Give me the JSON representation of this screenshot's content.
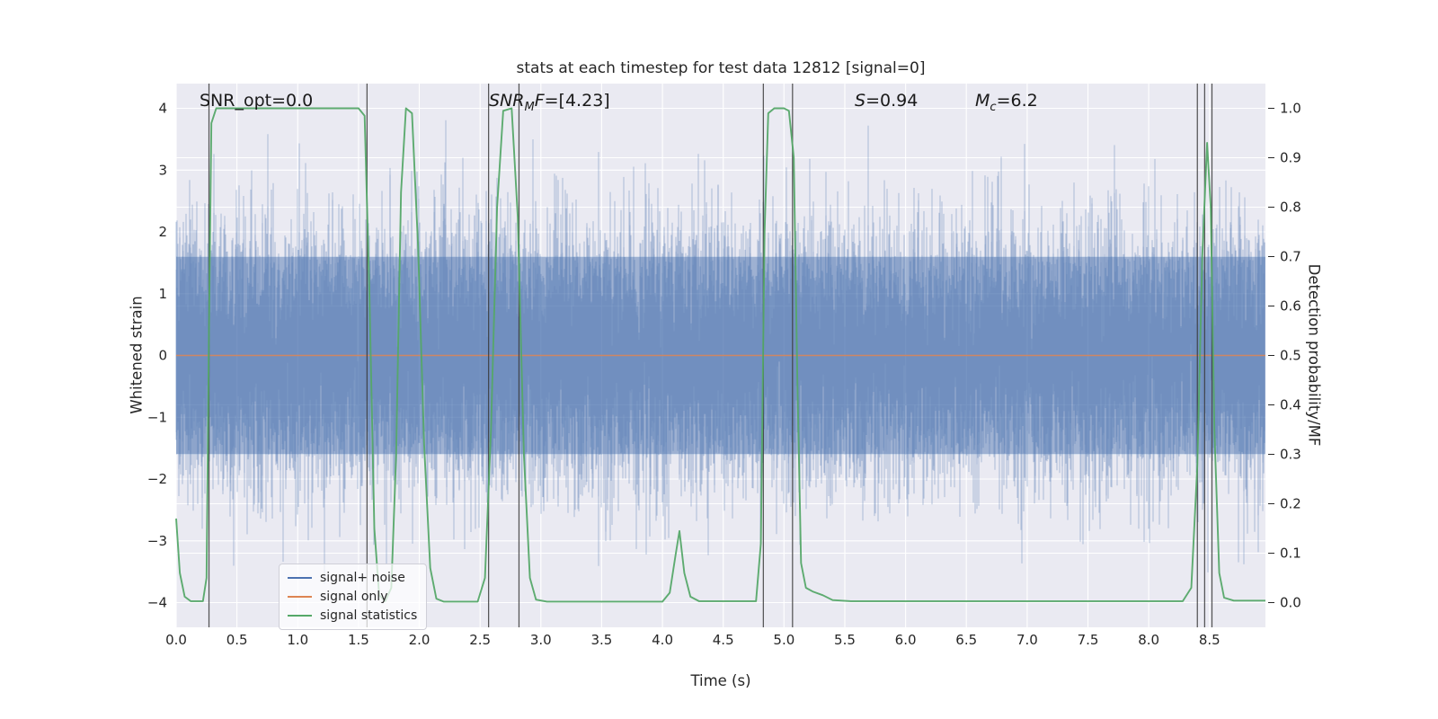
{
  "figure": {
    "background": "#ffffff",
    "axes_background": "#eaeaf2",
    "grid_color": "#ffffff",
    "text_color": "#262626",
    "trigger_line_color": "#3a3a3a"
  },
  "chart_data": {
    "type": "line",
    "title": "stats at each timestep for test data 12812 [signal=0]",
    "xlabel": "Time (s)",
    "ylabel_left": "Whitened strain",
    "ylabel_right": "Detection probability/MF",
    "xlim": [
      0,
      8.96
    ],
    "ylim_left": [
      -4.4,
      4.4
    ],
    "ylim_right": [
      -0.05,
      1.05
    ],
    "grid": true,
    "legend_position": "lower-left",
    "x_ticks": [
      0.0,
      0.5,
      1.0,
      1.5,
      2.0,
      2.5,
      3.0,
      3.5,
      4.0,
      4.5,
      5.0,
      5.5,
      6.0,
      6.5,
      7.0,
      7.5,
      8.0,
      8.5
    ],
    "y_ticks_left": [
      4,
      3,
      2,
      1,
      0,
      -1,
      -2,
      -3,
      -4
    ],
    "y_ticks_right": [
      1.0,
      0.9,
      0.8,
      0.7,
      0.6,
      0.5,
      0.4,
      0.3,
      0.2,
      0.1,
      0.0
    ],
    "annotations": [
      {
        "id": "snr-opt",
        "x": 0.19,
        "parts": [
          {
            "t": "SNR_opt=0.0",
            "i": false
          }
        ]
      },
      {
        "id": "snr-mf",
        "x": 2.57,
        "parts": [
          {
            "t": "SNR",
            "i": true
          },
          {
            "t": "M",
            "i": true,
            "sub": true
          },
          {
            "t": "F",
            "i": true
          },
          {
            "t": "=[4.23]",
            "i": false
          }
        ]
      },
      {
        "id": "s-stat",
        "x": 5.58,
        "parts": [
          {
            "t": "S",
            "i": true
          },
          {
            "t": "=0.94",
            "i": false
          }
        ]
      },
      {
        "id": "chirp-mass",
        "x": 6.57,
        "parts": [
          {
            "t": "M",
            "i": true
          },
          {
            "t": "c",
            "i": true,
            "sub": true
          },
          {
            "t": "=6.2",
            "i": false
          }
        ]
      }
    ],
    "series": [
      {
        "name": "signal+ noise",
        "kind": "gaussian-noise",
        "axis": "left",
        "color": "#4c72b0",
        "mean": 0,
        "std": 1,
        "seed": 12812,
        "samples_per_pixel": 14,
        "x_range": [
          0,
          8.96
        ],
        "dense_core_band": 1.6,
        "max_abs": 3.95
      },
      {
        "name": "signal only",
        "kind": "constant",
        "axis": "left",
        "color": "#dd8452",
        "value": 0
      },
      {
        "name": "signal statistics",
        "kind": "line",
        "axis": "right",
        "color": "#55a868",
        "points": [
          [
            0,
            0.17
          ],
          [
            0.03,
            0.06
          ],
          [
            0.07,
            0.012
          ],
          [
            0.12,
            0.003
          ],
          [
            0.22,
            0.003
          ],
          [
            0.25,
            0.05
          ],
          [
            0.27,
            0.55
          ],
          [
            0.29,
            0.97
          ],
          [
            0.33,
            1.0
          ],
          [
            1.5,
            1.0
          ],
          [
            1.55,
            0.985
          ],
          [
            1.59,
            0.62
          ],
          [
            1.63,
            0.15
          ],
          [
            1.67,
            0.015
          ],
          [
            1.72,
            0.003
          ],
          [
            1.77,
            0.03
          ],
          [
            1.81,
            0.3
          ],
          [
            1.85,
            0.83
          ],
          [
            1.89,
            1.0
          ],
          [
            1.94,
            0.99
          ],
          [
            1.99,
            0.72
          ],
          [
            2.04,
            0.32
          ],
          [
            2.09,
            0.07
          ],
          [
            2.14,
            0.008
          ],
          [
            2.2,
            0.002
          ],
          [
            2.48,
            0.002
          ],
          [
            2.54,
            0.05
          ],
          [
            2.59,
            0.35
          ],
          [
            2.64,
            0.8
          ],
          [
            2.69,
            0.995
          ],
          [
            2.76,
            1.0
          ],
          [
            2.81,
            0.78
          ],
          [
            2.86,
            0.3
          ],
          [
            2.91,
            0.05
          ],
          [
            2.96,
            0.006
          ],
          [
            3.05,
            0.002
          ],
          [
            4.0,
            0.002
          ],
          [
            4.06,
            0.02
          ],
          [
            4.11,
            0.1
          ],
          [
            4.14,
            0.145
          ],
          [
            4.18,
            0.06
          ],
          [
            4.23,
            0.012
          ],
          [
            4.3,
            0.003
          ],
          [
            4.77,
            0.003
          ],
          [
            4.81,
            0.12
          ],
          [
            4.84,
            0.75
          ],
          [
            4.87,
            0.99
          ],
          [
            4.92,
            1.0
          ],
          [
            5.0,
            1.0
          ],
          [
            5.04,
            0.995
          ],
          [
            5.08,
            0.9
          ],
          [
            5.11,
            0.45
          ],
          [
            5.14,
            0.08
          ],
          [
            5.18,
            0.03
          ],
          [
            5.24,
            0.022
          ],
          [
            5.32,
            0.015
          ],
          [
            5.4,
            0.005
          ],
          [
            5.55,
            0.003
          ],
          [
            8.28,
            0.003
          ],
          [
            8.35,
            0.03
          ],
          [
            8.4,
            0.28
          ],
          [
            8.44,
            0.7
          ],
          [
            8.48,
            0.93
          ],
          [
            8.51,
            0.8
          ],
          [
            8.54,
            0.35
          ],
          [
            8.58,
            0.06
          ],
          [
            8.62,
            0.01
          ],
          [
            8.7,
            0.004
          ],
          [
            8.96,
            0.004
          ]
        ]
      }
    ],
    "trigger_lines": {
      "color": "#3a3a3a",
      "times": [
        0.27,
        1.57,
        2.57,
        2.82,
        4.83,
        5.07,
        8.4,
        8.46,
        8.52
      ]
    }
  },
  "legend": {
    "entries": [
      {
        "label": "signal+ noise",
        "color": "#4c72b0"
      },
      {
        "label": "signal only",
        "color": "#dd8452"
      },
      {
        "label": "signal statistics",
        "color": "#55a868"
      }
    ]
  }
}
